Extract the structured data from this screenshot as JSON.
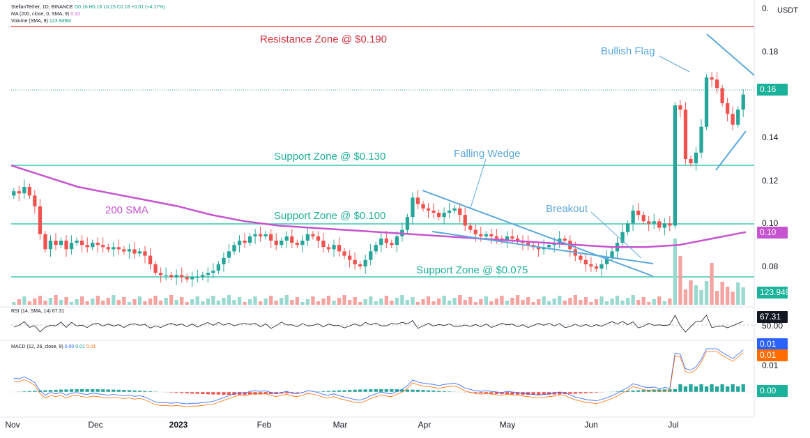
{
  "header": {
    "symbol_line": "Stellar/Tether, 1D, BINANCE",
    "ohlc": {
      "o": "O0.16",
      "h": "H0.16",
      "l": "L0.15",
      "c": "C0.16",
      "chg": "+0.01 (+4.17%)"
    },
    "ma_line": "MA (200, close, 0, SMA, 9)",
    "ma_value": "0.10",
    "volume_line": "Volume (SMA, 9)",
    "volume_value": "123.949M",
    "currency": "USDT"
  },
  "price_axis": {
    "ticks": [
      "0.18",
      "0.14",
      "0.12",
      "0.10",
      "0.08"
    ],
    "top_partial": "0."
  },
  "tags": {
    "price": "0.16",
    "ma": "0.10",
    "volume": "123.949M",
    "rsi": "67.31",
    "rsi_level": "50.00",
    "macd1": "0.01",
    "macd2": "0.01",
    "macd_axis": "0.01",
    "macd_hist": "0.00"
  },
  "rsi": {
    "label": "RSI (14, SMA, 14)",
    "value": "67.31"
  },
  "macd": {
    "label": "MACD (12, 26, close, 9)",
    "v1": "0.00",
    "v2": "0.01",
    "v3": "0.01"
  },
  "x_axis": {
    "labels": [
      {
        "t": "Nov",
        "x": 18
      },
      {
        "t": "Dec",
        "x": 137
      },
      {
        "t": "2023",
        "x": 256
      },
      {
        "t": "Feb",
        "x": 379
      },
      {
        "t": "Mar",
        "x": 488
      },
      {
        "t": "Apr",
        "x": 609
      },
      {
        "t": "May",
        "x": 728
      },
      {
        "t": "Jun",
        "x": 848
      },
      {
        "t": "Jul",
        "x": 966
      }
    ]
  },
  "annotations": {
    "resistance": "Resistance Zone @ $0.190",
    "support130": "Support Zone @ $0.130",
    "support100": "Support Zone @ $0.100",
    "support075": "Support Zone @ $0.075",
    "sma": "200 SMA",
    "wedge": "Falling Wedge",
    "breakout": "Breakout",
    "flag": "Bullish Flag"
  },
  "colors": {
    "up": "#26a69a",
    "down": "#ef5350",
    "sma": "#c653d0",
    "resistance": "#ef5350",
    "support": "#3fc6b0",
    "pattern": "#5ba8dc",
    "resistance_text": "#d0303f",
    "support_text": "#1fae98"
  },
  "chart_data": {
    "type": "candlestick",
    "x": [
      "Nov",
      "Dec",
      "2023",
      "Feb",
      "Mar",
      "Apr",
      "May",
      "Jun",
      "Jul"
    ],
    "ylim": [
      0.07,
      0.195
    ],
    "levels": {
      "resistance": 0.19,
      "support": [
        0.13,
        0.1,
        0.075
      ]
    },
    "close_series": [
      0.115,
      0.114,
      0.117,
      0.113,
      0.108,
      0.095,
      0.088,
      0.092,
      0.09,
      0.092,
      0.088,
      0.091,
      0.092,
      0.09,
      0.089,
      0.091,
      0.09,
      0.089,
      0.088,
      0.089,
      0.088,
      0.087,
      0.088,
      0.086,
      0.087,
      0.085,
      0.081,
      0.077,
      0.076,
      0.076,
      0.075,
      0.076,
      0.075,
      0.074,
      0.075,
      0.075,
      0.076,
      0.077,
      0.078,
      0.081,
      0.084,
      0.087,
      0.09,
      0.092,
      0.091,
      0.094,
      0.095,
      0.094,
      0.095,
      0.092,
      0.09,
      0.092,
      0.094,
      0.091,
      0.09,
      0.092,
      0.095,
      0.094,
      0.092,
      0.089,
      0.088,
      0.09,
      0.087,
      0.085,
      0.083,
      0.081,
      0.08,
      0.083,
      0.087,
      0.09,
      0.093,
      0.091,
      0.09,
      0.094,
      0.097,
      0.103,
      0.112,
      0.109,
      0.107,
      0.106,
      0.105,
      0.103,
      0.105,
      0.106,
      0.107,
      0.104,
      0.099,
      0.097,
      0.095,
      0.094,
      0.095,
      0.094,
      0.093,
      0.092,
      0.094,
      0.093,
      0.092,
      0.091,
      0.09,
      0.089,
      0.088,
      0.089,
      0.09,
      0.091,
      0.093,
      0.092,
      0.088,
      0.085,
      0.083,
      0.081,
      0.08,
      0.079,
      0.081,
      0.084,
      0.087,
      0.091,
      0.096,
      0.1,
      0.106,
      0.104,
      0.101,
      0.1,
      0.101,
      0.098,
      0.1,
      0.099,
      0.155,
      0.153,
      0.13,
      0.128,
      0.133,
      0.145,
      0.168,
      0.167,
      0.163,
      0.156,
      0.151,
      0.146,
      0.153,
      0.16
    ],
    "sma_series": [
      0.127,
      0.122,
      0.117,
      0.114,
      0.111,
      0.108,
      0.104,
      0.101,
      0.099,
      0.098,
      0.097,
      0.096,
      0.095,
      0.094,
      0.093,
      0.092,
      0.091,
      0.09,
      0.089,
      0.089,
      0.09,
      0.093,
      0.096
    ],
    "volume_value": "123.949M",
    "rsi_last": 67.31,
    "macd_last": [
      0.0,
      0.01,
      0.01
    ]
  }
}
